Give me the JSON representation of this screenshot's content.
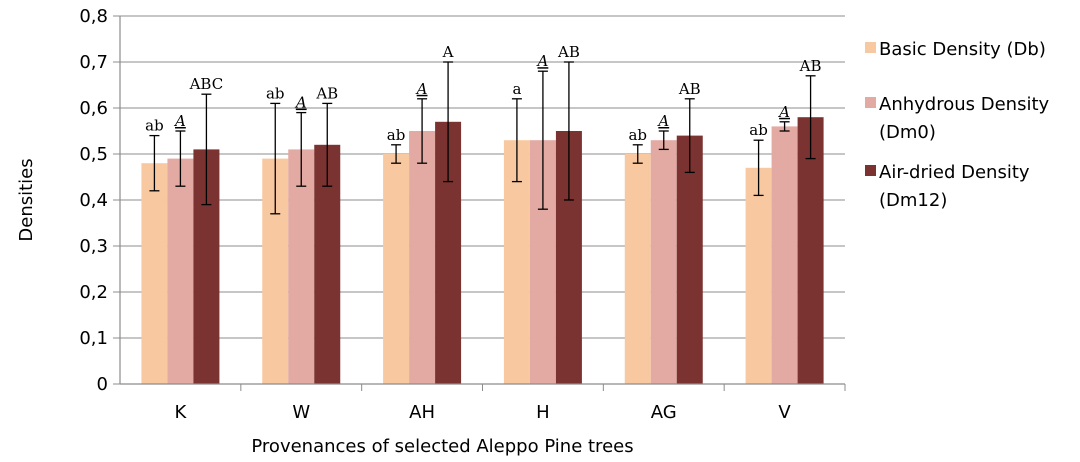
{
  "chart_data": {
    "type": "bar",
    "title": "",
    "xlabel": "Provenances of selected Aleppo Pine trees",
    "ylabel": "Densities",
    "ylim": [
      0,
      0.8
    ],
    "yticks": [
      "0",
      "0,1",
      "0,2",
      "0,3",
      "0,4",
      "0,5",
      "0,6",
      "0,7",
      "0,8"
    ],
    "ytick_values": [
      0,
      0.1,
      0.2,
      0.3,
      0.4,
      0.5,
      0.6,
      0.7,
      0.8
    ],
    "grid": true,
    "legend_position": "right",
    "categories": [
      "K",
      "W",
      "AH",
      "H",
      "AG",
      "V"
    ],
    "series": [
      {
        "name": "Basic Density (Db)",
        "color": "#f8c9a0",
        "values": [
          0.48,
          0.49,
          0.5,
          0.53,
          0.5,
          0.47
        ],
        "err_low": [
          0.42,
          0.37,
          0.48,
          0.44,
          0.48,
          0.41
        ],
        "err_high": [
          0.54,
          0.61,
          0.52,
          0.62,
          0.52,
          0.53
        ],
        "labels": [
          "ab",
          "ab",
          "ab",
          "a",
          "ab",
          "ab"
        ],
        "label_style": "normal"
      },
      {
        "name": "Anhydrous Density (Dm0)",
        "color": "#e2aaa3",
        "values": [
          0.49,
          0.51,
          0.55,
          0.53,
          0.53,
          0.56
        ],
        "err_low": [
          0.43,
          0.43,
          0.48,
          0.38,
          0.51,
          0.55
        ],
        "err_high": [
          0.55,
          0.59,
          0.62,
          0.68,
          0.55,
          0.57
        ],
        "labels": [
          "A",
          "A",
          "A",
          "A",
          "A",
          "A"
        ],
        "label_style": "italic"
      },
      {
        "name": "Air-dried Density (Dm12)",
        "color": "#7b3331",
        "values": [
          0.51,
          0.52,
          0.57,
          0.55,
          0.54,
          0.58
        ],
        "err_low": [
          0.39,
          0.43,
          0.44,
          0.4,
          0.46,
          0.49
        ],
        "err_high": [
          0.63,
          0.61,
          0.7,
          0.7,
          0.62,
          0.67
        ],
        "labels": [
          "ABC",
          "AB",
          "A",
          "AB",
          "AB",
          "AB"
        ],
        "label_style": "normal"
      }
    ]
  }
}
